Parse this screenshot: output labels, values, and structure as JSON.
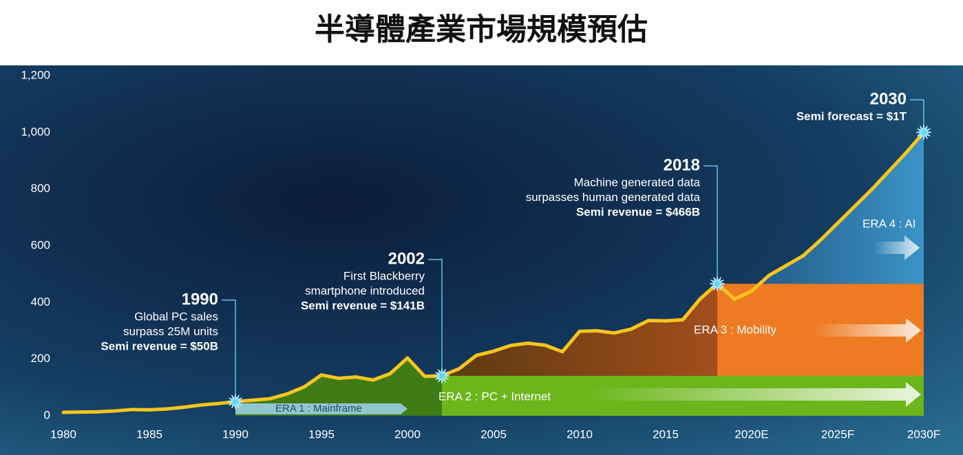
{
  "chart_data": {
    "type": "line",
    "title": "半導體產業市場規模預估",
    "x": [
      1980,
      1981,
      1982,
      1983,
      1984,
      1985,
      1986,
      1987,
      1988,
      1989,
      1990,
      1991,
      1992,
      1993,
      1994,
      1995,
      1996,
      1997,
      1998,
      1999,
      2000,
      2001,
      2002,
      2003,
      2004,
      2005,
      2006,
      2007,
      2008,
      2009,
      2010,
      2011,
      2012,
      2013,
      2014,
      2015,
      2016,
      2017,
      2018,
      2019,
      2020,
      2021,
      2022,
      2023,
      2024,
      2025,
      2026,
      2027,
      2028,
      2029,
      2030
    ],
    "values": [
      12,
      13,
      14,
      17,
      22,
      21,
      24,
      30,
      38,
      43,
      50,
      55,
      60,
      77,
      102,
      144,
      132,
      137,
      126,
      149,
      204,
      139,
      141,
      166,
      213,
      228,
      248,
      256,
      249,
      226,
      298,
      300,
      292,
      306,
      336,
      335,
      339,
      412,
      466,
      412,
      440,
      495,
      530,
      565,
      620,
      680,
      740,
      800,
      865,
      930,
      1000
    ],
    "color": "#f7c51e",
    "xlim": [
      1980,
      2030
    ],
    "xticks": [
      1980,
      1985,
      1990,
      1995,
      2000,
      2005,
      2010,
      2015,
      {
        "value": 2020,
        "label": "2020E"
      },
      {
        "value": 2025,
        "label": "2025F"
      },
      {
        "value": 2030,
        "label": "2030F"
      }
    ],
    "ylim": [
      0,
      1200
    ],
    "yticks": [
      0,
      200,
      400,
      600,
      800,
      {
        "value": 1000,
        "label": "1,000"
      },
      {
        "value": 1200,
        "label": "1,200"
      }
    ],
    "eras": [
      {
        "name": "ERA 1 : Mainframe",
        "from": 1990,
        "to": 2000,
        "color": "#9fd3ee"
      },
      {
        "name": "ERA 2 : PC + Internet",
        "from": 2002,
        "to": 2030,
        "color": "#6cb61c"
      },
      {
        "name": "ERA 3 : Mobility",
        "from": 2018,
        "to": 2030,
        "color": "#ee7a22"
      },
      {
        "name": "ERA 4 : AI",
        "from": 2018,
        "to": 2030,
        "color": "#3a93c6"
      }
    ],
    "annotations": [
      {
        "x": 1990,
        "value": 50,
        "lines": [
          "Global PC sales",
          "surpass 25M units"
        ],
        "highlight": "Semi revenue = $50B"
      },
      {
        "x": 2002,
        "value": 141,
        "lines": [
          "First Blackberry",
          "smartphone introduced"
        ],
        "highlight": "Semi revenue = $141B"
      },
      {
        "x": 2018,
        "value": 466,
        "lines": [
          "Machine generated data",
          "surpasses human generated data"
        ],
        "highlight": "Semi revenue = $466B"
      },
      {
        "x": 2030,
        "value": 1000,
        "lines": [],
        "highlight": "Semi forecast = $1T"
      }
    ]
  }
}
